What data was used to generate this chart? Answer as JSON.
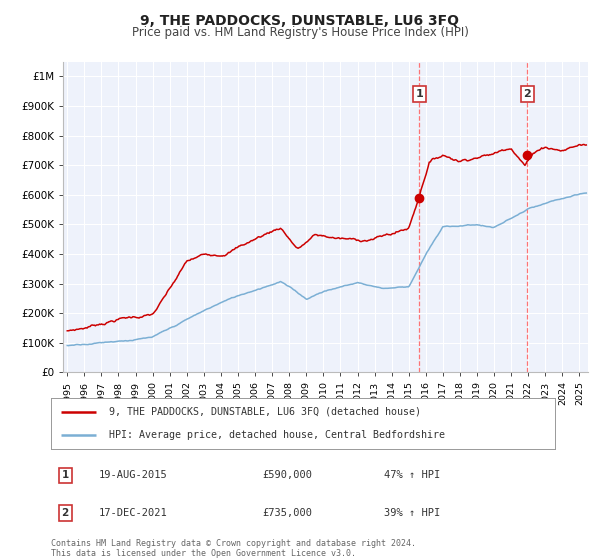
{
  "title": "9, THE PADDOCKS, DUNSTABLE, LU6 3FQ",
  "subtitle": "Price paid vs. HM Land Registry's House Price Index (HPI)",
  "legend_line1": "9, THE PADDOCKS, DUNSTABLE, LU6 3FQ (detached house)",
  "legend_line2": "HPI: Average price, detached house, Central Bedfordshire",
  "annotation1_date": "19-AUG-2015",
  "annotation1_price": "£590,000",
  "annotation1_hpi": "47% ↑ HPI",
  "annotation2_date": "17-DEC-2021",
  "annotation2_price": "£735,000",
  "annotation2_hpi": "39% ↑ HPI",
  "footer_line1": "Contains HM Land Registry data © Crown copyright and database right 2024.",
  "footer_line2": "This data is licensed under the Open Government Licence v3.0.",
  "red_color": "#cc0000",
  "blue_color": "#7bafd4",
  "background_color": "#ffffff",
  "plot_bg_color": "#eef2fb",
  "grid_color": "#ffffff",
  "vline_color": "#ff6666",
  "xlim_start": 1994.75,
  "xlim_end": 2025.5,
  "ylim_min": 0,
  "ylim_max": 1050000,
  "yticks": [
    0,
    100000,
    200000,
    300000,
    400000,
    500000,
    600000,
    700000,
    800000,
    900000,
    1000000
  ],
  "ytick_labels": [
    "£0",
    "£100K",
    "£200K",
    "£300K",
    "£400K",
    "£500K",
    "£600K",
    "£700K",
    "£800K",
    "£900K",
    "£1M"
  ],
  "xticks": [
    1995,
    1996,
    1997,
    1998,
    1999,
    2000,
    2001,
    2002,
    2003,
    2004,
    2005,
    2006,
    2007,
    2008,
    2009,
    2010,
    2011,
    2012,
    2013,
    2014,
    2015,
    2016,
    2017,
    2018,
    2019,
    2020,
    2021,
    2022,
    2023,
    2024,
    2025
  ],
  "sale1_x": 2015.63,
  "sale1_y": 590000,
  "sale2_x": 2021.955,
  "sale2_y": 735000
}
